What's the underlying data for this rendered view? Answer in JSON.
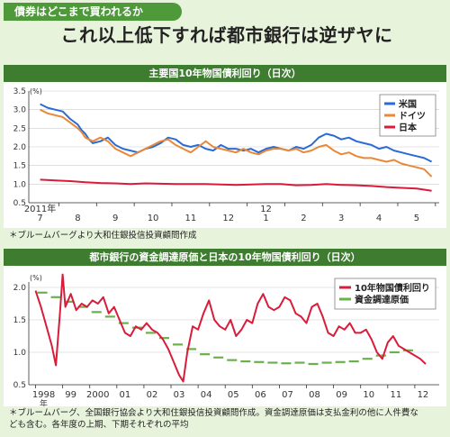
{
  "header": {
    "tag": "債券はどこまで買われるか",
    "headline": "これ以上低下すれば都市銀行は逆ザヤに"
  },
  "chart_data": [
    {
      "type": "line",
      "title": "主要国10年物国債利回り（日次）",
      "ylabel": "(%)",
      "ylim": [
        0.5,
        3.5
      ],
      "yticks": [
        "0.5",
        "1.0",
        "1.5",
        "2.0",
        "2.5",
        "3.0",
        "3.5"
      ],
      "x_tick_labels": [
        "7",
        "8",
        "9",
        "10",
        "11",
        "12",
        "1",
        "2",
        "3",
        "4",
        "5"
      ],
      "x_year_labels": [
        "2011年",
        "12"
      ],
      "legend_position": "top-right",
      "series": [
        {
          "name": "米国",
          "color": "#2a6bd6",
          "x": [
            7.0,
            7.2,
            7.4,
            7.6,
            7.8,
            8.0,
            8.1,
            8.2,
            8.3,
            8.4,
            8.6,
            8.8,
            9.0,
            9.2,
            9.4,
            9.6,
            9.8,
            10.0,
            10.2,
            10.4,
            10.6,
            10.8,
            11.0,
            11.2,
            11.4,
            11.6,
            11.8,
            12.0,
            12.2,
            12.4,
            12.6,
            12.8,
            13.0,
            13.2,
            13.4,
            13.6,
            13.8,
            14.0,
            14.2,
            14.4,
            14.6,
            14.8,
            15.0,
            15.2,
            15.4,
            15.6,
            15.8,
            16.0,
            16.2,
            16.4,
            16.6,
            16.8,
            17.0,
            17.2,
            17.4
          ],
          "y": [
            3.15,
            3.05,
            3.0,
            2.95,
            2.75,
            2.6,
            2.45,
            2.35,
            2.2,
            2.1,
            2.15,
            2.25,
            2.05,
            1.95,
            1.9,
            1.85,
            1.95,
            2.0,
            2.1,
            2.25,
            2.2,
            2.05,
            2.0,
            2.05,
            1.95,
            1.9,
            2.05,
            1.95,
            1.95,
            1.9,
            1.95,
            1.85,
            1.95,
            2.0,
            1.95,
            1.9,
            2.0,
            1.95,
            2.05,
            2.25,
            2.35,
            2.3,
            2.2,
            2.25,
            2.15,
            2.1,
            2.05,
            1.95,
            2.0,
            1.9,
            1.85,
            1.8,
            1.75,
            1.7,
            1.6
          ]
        },
        {
          "name": "ドイツ",
          "color": "#e8893a",
          "x": [
            7.0,
            7.2,
            7.4,
            7.6,
            7.8,
            8.0,
            8.1,
            8.2,
            8.3,
            8.4,
            8.6,
            8.8,
            9.0,
            9.2,
            9.4,
            9.6,
            9.8,
            10.0,
            10.2,
            10.4,
            10.6,
            10.8,
            11.0,
            11.2,
            11.4,
            11.6,
            11.8,
            12.0,
            12.2,
            12.4,
            12.6,
            12.8,
            13.0,
            13.2,
            13.4,
            13.6,
            13.8,
            14.0,
            14.2,
            14.4,
            14.6,
            14.8,
            15.0,
            15.2,
            15.4,
            15.6,
            15.8,
            16.0,
            16.2,
            16.4,
            16.6,
            16.8,
            17.0,
            17.2,
            17.4
          ],
          "y": [
            3.0,
            2.9,
            2.85,
            2.8,
            2.65,
            2.5,
            2.4,
            2.25,
            2.2,
            2.15,
            2.25,
            2.15,
            1.95,
            1.85,
            1.75,
            1.85,
            1.95,
            2.05,
            2.15,
            2.2,
            2.05,
            1.95,
            1.85,
            2.0,
            2.15,
            2.0,
            1.95,
            1.9,
            1.85,
            1.95,
            1.85,
            1.8,
            1.9,
            1.95,
            1.95,
            1.9,
            1.95,
            1.85,
            1.9,
            2.0,
            2.05,
            1.9,
            1.8,
            1.85,
            1.75,
            1.7,
            1.7,
            1.65,
            1.6,
            1.65,
            1.55,
            1.5,
            1.45,
            1.4,
            1.2
          ]
        },
        {
          "name": "日本",
          "color": "#d81c3a",
          "x": [
            7.0,
            7.4,
            7.8,
            8.2,
            8.6,
            9.0,
            9.4,
            9.8,
            10.2,
            10.6,
            11.0,
            11.4,
            11.8,
            12.2,
            12.6,
            13.0,
            13.4,
            13.8,
            14.2,
            14.6,
            15.0,
            15.4,
            15.8,
            16.2,
            16.6,
            17.0,
            17.4
          ],
          "y": [
            1.12,
            1.1,
            1.08,
            1.05,
            1.03,
            1.02,
            1.0,
            1.02,
            1.01,
            1.0,
            1.0,
            1.0,
            0.99,
            0.98,
            0.99,
            1.0,
            1.0,
            0.97,
            0.98,
            1.0,
            0.98,
            0.97,
            0.95,
            0.92,
            0.9,
            0.88,
            0.82
          ]
        }
      ]
    },
    {
      "type": "line",
      "title": "都市銀行の資金調達原価と日本の10年物国債利回り（日次）",
      "ylabel": "(%)",
      "ylim": [
        0.5,
        2.0
      ],
      "yticks": [
        "0.5",
        "1.0",
        "1.5",
        "2.0"
      ],
      "x_tick_labels": [
        "1998",
        "99",
        "2000",
        "01",
        "02",
        "03",
        "04",
        "05",
        "06",
        "07",
        "08",
        "09",
        "10",
        "11",
        "12"
      ],
      "x_year_suffix": "年",
      "legend_position": "top-right",
      "series": [
        {
          "name": "10年物国債利回り",
          "color": "#d81c3a",
          "x": [
            1998.0,
            1998.2,
            1998.4,
            1998.6,
            1998.75,
            1998.9,
            1999.0,
            1999.1,
            1999.3,
            1999.5,
            1999.7,
            1999.9,
            2000.1,
            2000.3,
            2000.5,
            2000.7,
            2000.9,
            2001.1,
            2001.3,
            2001.5,
            2001.7,
            2001.9,
            2002.1,
            2002.3,
            2002.5,
            2002.7,
            2002.9,
            2003.1,
            2003.3,
            2003.45,
            2003.6,
            2003.8,
            2004.0,
            2004.2,
            2004.4,
            2004.6,
            2004.8,
            2005.0,
            2005.2,
            2005.4,
            2005.6,
            2005.8,
            2006.0,
            2006.2,
            2006.4,
            2006.6,
            2006.8,
            2007.0,
            2007.2,
            2007.4,
            2007.6,
            2007.8,
            2008.0,
            2008.2,
            2008.4,
            2008.6,
            2008.8,
            2009.0,
            2009.2,
            2009.4,
            2009.6,
            2009.8,
            2010.0,
            2010.2,
            2010.4,
            2010.6,
            2010.8,
            2011.0,
            2011.2,
            2011.4,
            2011.6,
            2011.8,
            2012.0,
            2012.2,
            2012.4
          ],
          "y": [
            1.95,
            1.7,
            1.4,
            1.1,
            0.8,
            1.6,
            2.2,
            1.7,
            1.9,
            1.65,
            1.75,
            1.7,
            1.8,
            1.75,
            1.85,
            1.6,
            1.7,
            1.5,
            1.3,
            1.25,
            1.4,
            1.35,
            1.45,
            1.35,
            1.3,
            1.2,
            1.05,
            0.85,
            0.65,
            0.55,
            1.0,
            1.4,
            1.35,
            1.6,
            1.8,
            1.5,
            1.4,
            1.35,
            1.5,
            1.25,
            1.35,
            1.5,
            1.45,
            1.75,
            1.9,
            1.7,
            1.65,
            1.7,
            1.85,
            1.8,
            1.6,
            1.55,
            1.45,
            1.7,
            1.75,
            1.55,
            1.3,
            1.25,
            1.4,
            1.35,
            1.45,
            1.3,
            1.3,
            1.35,
            1.2,
            1.0,
            0.9,
            1.15,
            1.25,
            1.1,
            1.05,
            1.0,
            0.95,
            0.9,
            0.82
          ]
        },
        {
          "name": "資金調達原価",
          "color": "#6ab04c",
          "segments_x": [
            [
              1998.0,
              1998.5
            ],
            [
              1998.5,
              1999.0
            ],
            [
              1999.0,
              1999.5
            ],
            [
              1999.5,
              2000.0
            ],
            [
              2000.0,
              2000.5
            ],
            [
              2000.5,
              2001.0
            ],
            [
              2001.0,
              2001.5
            ],
            [
              2001.5,
              2002.0
            ],
            [
              2002.0,
              2002.5
            ],
            [
              2002.5,
              2003.0
            ],
            [
              2003.0,
              2003.5
            ],
            [
              2003.5,
              2004.0
            ],
            [
              2004.0,
              2004.5
            ],
            [
              2004.5,
              2005.0
            ],
            [
              2005.0,
              2005.5
            ],
            [
              2005.5,
              2006.0
            ],
            [
              2006.0,
              2006.5
            ],
            [
              2006.5,
              2007.0
            ],
            [
              2007.0,
              2007.5
            ],
            [
              2007.5,
              2008.0
            ],
            [
              2008.0,
              2008.5
            ],
            [
              2008.5,
              2009.0
            ],
            [
              2009.0,
              2009.5
            ],
            [
              2009.5,
              2010.0
            ],
            [
              2010.0,
              2010.5
            ],
            [
              2010.5,
              2011.0
            ],
            [
              2011.0,
              2011.5
            ],
            [
              2011.5,
              2012.0
            ]
          ],
          "segments_y": [
            1.92,
            1.85,
            1.78,
            1.7,
            1.62,
            1.55,
            1.45,
            1.38,
            1.3,
            1.22,
            1.12,
            1.05,
            0.97,
            0.92,
            0.88,
            0.86,
            0.85,
            0.84,
            0.83,
            0.84,
            0.82,
            0.84,
            0.85,
            0.86,
            0.9,
            0.95,
            1.0,
            1.03,
            1.06,
            1.1,
            1.15,
            1.2,
            1.22,
            1.25,
            1.2,
            1.12,
            1.08,
            1.02,
            0.98,
            0.95,
            0.94,
            0.92,
            0.9,
            0.88,
            0.87,
            0.86,
            0.85,
            0.84,
            0.83,
            0.82,
            0.82,
            0.81,
            0.8,
            0.8,
            0.79,
            0.78
          ]
        }
      ]
    }
  ],
  "sources": {
    "top": "＊ブルームバーグより大和住銀投信投資顧問作成",
    "bottom_line1": "＊ブルームバーグ、全国銀行協会より大和住銀投信投資顧問作成。資金調達原価は支払金利の他に人件費な",
    "bottom_line2": "ども含む。各年度の上期、下期それぞれの平均"
  }
}
